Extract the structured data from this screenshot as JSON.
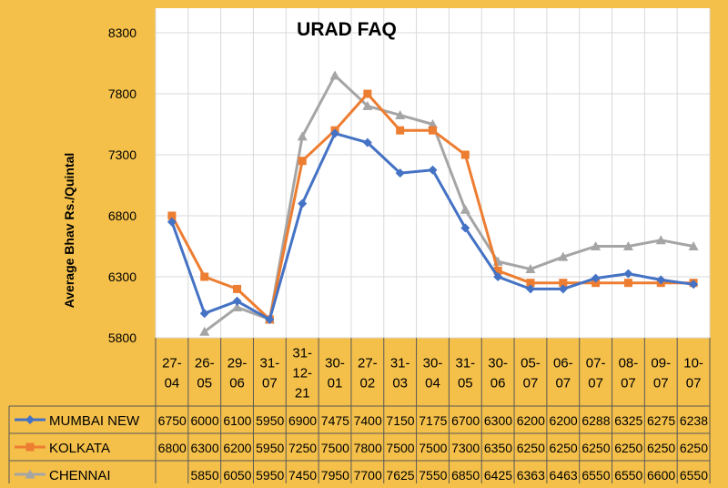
{
  "chart_data": {
    "type": "line",
    "title": "URAD FAQ",
    "xlabel": "",
    "ylabel": "Average Bhav Rs./Quintal",
    "ylim": [
      5800,
      8300
    ],
    "yticks": [
      5800,
      6300,
      6800,
      7300,
      7800,
      8300
    ],
    "grid": true,
    "legend": "data-table",
    "categories": [
      "27-04",
      "26-05",
      "29-06",
      "31-07",
      "31-12-21",
      "30-01",
      "27-02",
      "31-03",
      "30-04",
      "31-05",
      "30-06",
      "05-07",
      "06-07",
      "07-07",
      "08-07",
      "09-07",
      "10-07"
    ],
    "category_lines": [
      [
        "27-",
        "04"
      ],
      [
        "26-",
        "05"
      ],
      [
        "29-",
        "06"
      ],
      [
        "31-",
        "07"
      ],
      [
        "31-",
        "12-",
        "21"
      ],
      [
        "30-",
        "01"
      ],
      [
        "27-",
        "02"
      ],
      [
        "31-",
        "03"
      ],
      [
        "30-",
        "04"
      ],
      [
        "31-",
        "05"
      ],
      [
        "30-",
        "06"
      ],
      [
        "05-",
        "07"
      ],
      [
        "06-",
        "07"
      ],
      [
        "07-",
        "07"
      ],
      [
        "08-",
        "07"
      ],
      [
        "09-",
        "07"
      ],
      [
        "10-",
        "07"
      ]
    ],
    "series": [
      {
        "name": "MUMBAI NEW",
        "color": "#4472c4",
        "marker": "diamond",
        "values": [
          6750,
          6000,
          6100,
          5950,
          6900,
          7475,
          7400,
          7150,
          7175,
          6700,
          6300,
          6200,
          6200,
          6288,
          6325,
          6275,
          6238
        ]
      },
      {
        "name": "KOLKATA",
        "color": "#ed7d31",
        "marker": "square",
        "values": [
          6800,
          6300,
          6200,
          5950,
          7250,
          7500,
          7800,
          7500,
          7500,
          7300,
          6350,
          6250,
          6250,
          6250,
          6250,
          6250,
          6250
        ]
      },
      {
        "name": "CHENNAI",
        "color": "#a5a5a5",
        "marker": "triangle",
        "values": [
          null,
          5850,
          6050,
          5950,
          7450,
          7950,
          7700,
          7625,
          7550,
          6850,
          6425,
          6363,
          6463,
          6550,
          6550,
          6600,
          6550
        ]
      }
    ]
  }
}
